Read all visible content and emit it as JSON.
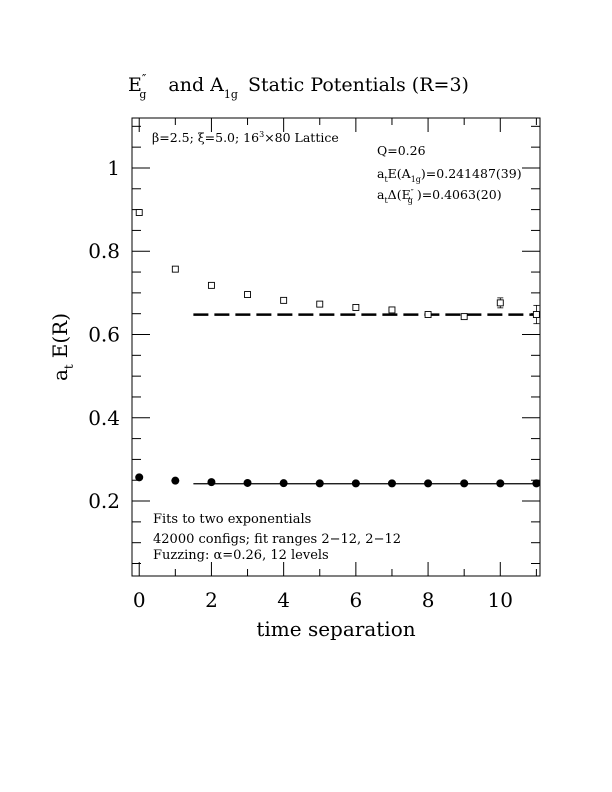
{
  "chart_data": {
    "type": "scatter",
    "title": {
      "e_main": "E",
      "e_sup": "″",
      "e_sub": "g",
      "and_text": "and A",
      "a_sub": "1g",
      "rest": "Static Potentials (R=3)"
    },
    "xlabel": "time separation",
    "ylabel": {
      "main": "a",
      "sub": "t",
      "rest": "E(R)"
    },
    "xlim": [
      -0.2,
      11.1
    ],
    "ylim": [
      0.02,
      1.12
    ],
    "x_ticks": [
      0,
      2,
      4,
      6,
      8,
      10
    ],
    "x_tick_labels": [
      "0",
      "2",
      "4",
      "6",
      "8",
      "10"
    ],
    "y_ticks": [
      0.2,
      0.4,
      0.6,
      0.8,
      1.0
    ],
    "y_tick_labels": [
      "0.2",
      "0.4",
      "0.6",
      "0.8",
      "1"
    ],
    "grid": false,
    "lattice_info": {
      "beta": "β=2.5; ξ=5.0; 16",
      "exp": "3",
      "rest": "×80 Lattice"
    },
    "fit_info": {
      "q": "Q=0.26",
      "a1g_prefix": "a",
      "a1g_sub_t": "t",
      "a1g_mid": "E(A",
      "a1g_sub": "1g",
      "a1g_value": ")=0.241487(39)",
      "eg_prefix": "a",
      "eg_sub_t": "t",
      "eg_mid": "Δ(E",
      "eg_sup": "″",
      "eg_sub": "g",
      "eg_value": ")=0.4063(20)"
    },
    "notes": [
      "Fits to two exponentials",
      "42000 configs; fit ranges 2−12, 2−12",
      "Fuzzing: α=0.26, 12 levels"
    ],
    "series": [
      {
        "marker": "circle-filled",
        "points": [
          {
            "x": 0,
            "y": 0.257,
            "err": 0.002
          },
          {
            "x": 1,
            "y": 0.249,
            "err": 0.001
          },
          {
            "x": 2,
            "y": 0.2455,
            "err": 0.001
          },
          {
            "x": 3,
            "y": 0.2435,
            "err": 0.001
          },
          {
            "x": 4,
            "y": 0.243,
            "err": 0.001
          },
          {
            "x": 5,
            "y": 0.2425,
            "err": 0.001
          },
          {
            "x": 6,
            "y": 0.2425,
            "err": 0.001
          },
          {
            "x": 7,
            "y": 0.2425,
            "err": 0.001
          },
          {
            "x": 8,
            "y": 0.2425,
            "err": 0.001
          },
          {
            "x": 9,
            "y": 0.2425,
            "err": 0.001
          },
          {
            "x": 10,
            "y": 0.2425,
            "err": 0.001
          },
          {
            "x": 11,
            "y": 0.2425,
            "err": 0.002
          }
        ],
        "fit_line": {
          "x0": 1.5,
          "x1": 11.1,
          "y": 0.2415,
          "style": "solid"
        }
      },
      {
        "marker": "square-open",
        "points": [
          {
            "x": 0,
            "y": 0.893,
            "err": 0.004
          },
          {
            "x": 1,
            "y": 0.757,
            "err": 0.004
          },
          {
            "x": 2,
            "y": 0.718,
            "err": 0.004
          },
          {
            "x": 3,
            "y": 0.696,
            "err": 0.004
          },
          {
            "x": 4,
            "y": 0.682,
            "err": 0.004
          },
          {
            "x": 5,
            "y": 0.673,
            "err": 0.004
          },
          {
            "x": 6,
            "y": 0.665,
            "err": 0.005
          },
          {
            "x": 7,
            "y": 0.659,
            "err": 0.006
          },
          {
            "x": 8,
            "y": 0.648,
            "err": 0.004
          },
          {
            "x": 9,
            "y": 0.643,
            "err": 0.006
          },
          {
            "x": 10,
            "y": 0.676,
            "err": 0.012
          },
          {
            "x": 11,
            "y": 0.648,
            "err": 0.022
          }
        ],
        "fit_line": {
          "x0": 1.5,
          "x1": 11.1,
          "y": 0.6478,
          "style": "dashed"
        }
      }
    ]
  }
}
